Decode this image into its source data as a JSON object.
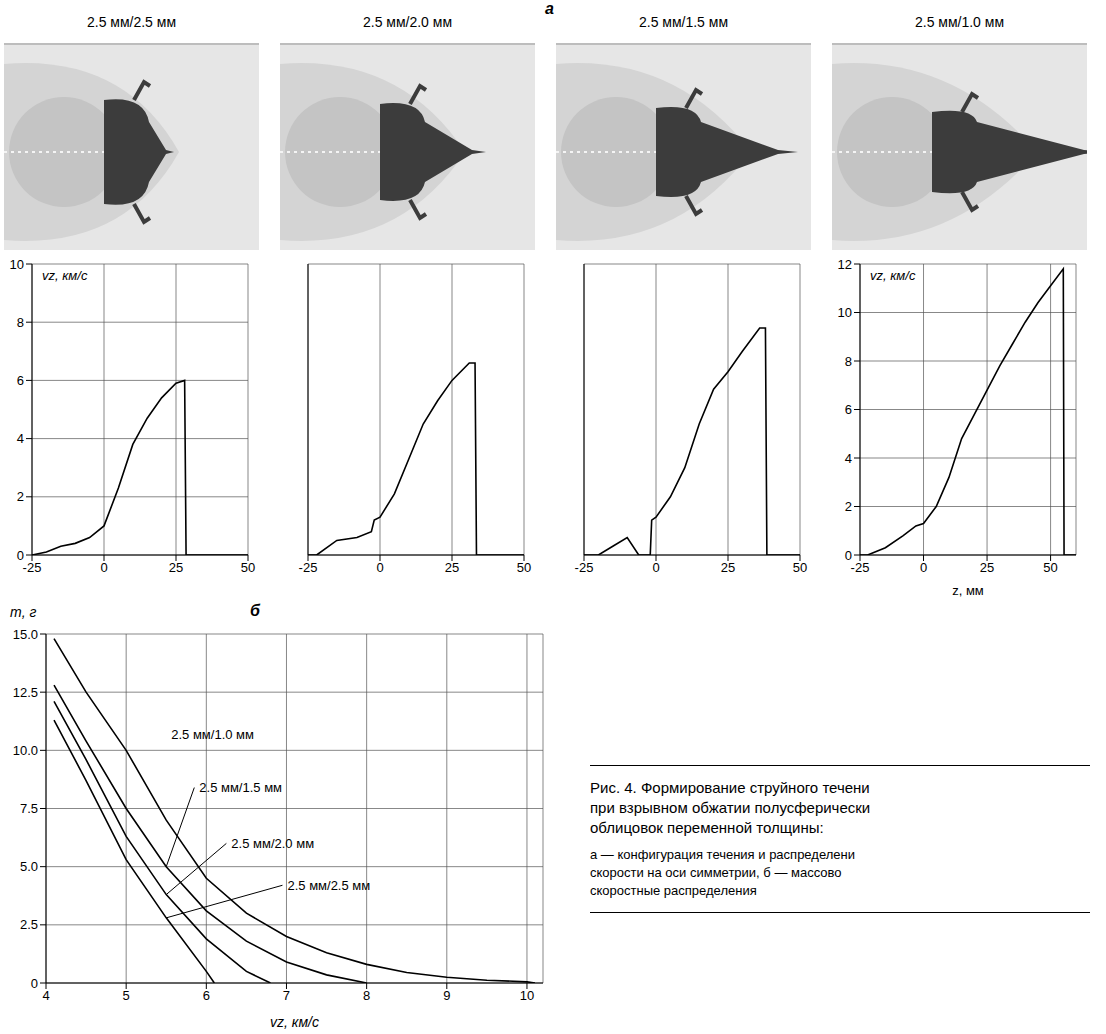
{
  "panel_labels": [
    "a",
    "б"
  ],
  "caption": {
    "title_lines": [
      "Рис. 4. Формирование струйного течени",
      "при взрывном обжатии полусферически",
      "облицовок переменной толщины:"
    ],
    "text_lines": [
      "a — конфигурация течения и распределени",
      "скорости на оси симметрии, б — массово",
      "скоростные распределения"
    ]
  },
  "chart_data": [
    {
      "type": "line",
      "title": "2.5 мм/2.5 мм",
      "y_label": "vz, км/с",
      "x": [
        -25,
        -20,
        -15,
        -10,
        -5,
        0,
        5,
        10,
        15,
        20,
        25,
        28,
        28.5,
        50
      ],
      "values": [
        0,
        0.1,
        0.3,
        0.4,
        0.6,
        1.0,
        2.3,
        3.8,
        4.7,
        5.4,
        5.9,
        6.0,
        0,
        0
      ],
      "color": "#000000",
      "xlim": [
        -25,
        50
      ],
      "xticks": [
        -25,
        0,
        25,
        50
      ],
      "ylim": [
        0,
        10
      ],
      "yticks": [
        0,
        2,
        4,
        6,
        8,
        10
      ],
      "grid": true
    },
    {
      "type": "line",
      "title": "2.5 мм/2.0 мм",
      "x": [
        -25,
        -22,
        -15,
        -8,
        -3,
        -2,
        0,
        5,
        10,
        15,
        20,
        25,
        31,
        33,
        33.5,
        50
      ],
      "values": [
        0,
        0,
        0.5,
        0.6,
        0.8,
        1.2,
        1.3,
        2.1,
        3.3,
        4.5,
        5.3,
        6.0,
        6.6,
        6.6,
        0,
        0
      ],
      "color": "#000000",
      "xlim": [
        -25,
        50
      ],
      "xticks": [
        -25,
        0,
        25,
        50
      ],
      "ylim": [
        0,
        10
      ],
      "yticks": [
        0,
        2,
        4,
        6,
        8,
        10
      ],
      "grid": true,
      "tick_labels": "x"
    },
    {
      "type": "line",
      "title": "2.5 мм/1.5 мм",
      "x": [
        -25,
        -20,
        -15,
        -10,
        -6,
        -2,
        -1.5,
        0,
        5,
        10,
        15,
        20,
        25,
        30,
        36,
        38,
        38.5,
        50
      ],
      "values": [
        0,
        0,
        0.3,
        0.6,
        0,
        0,
        1.2,
        1.3,
        2.0,
        3.0,
        4.5,
        5.7,
        6.3,
        7.0,
        7.8,
        7.8,
        0,
        0
      ],
      "color": "#000000",
      "xlim": [
        -25,
        50
      ],
      "xticks": [
        -25,
        0,
        25,
        50
      ],
      "ylim": [
        0,
        10
      ],
      "yticks": [
        0,
        2,
        4,
        6,
        8,
        10
      ],
      "grid": true,
      "tick_labels": "x"
    },
    {
      "type": "line",
      "title": "2.5 мм/1.0 мм",
      "y_label": "vz, км/с",
      "x_label": "z, мм",
      "x": [
        -25,
        -22,
        -15,
        -8,
        -3,
        0,
        5,
        10,
        15,
        20,
        25,
        30,
        35,
        40,
        45,
        50,
        55,
        55.3,
        60
      ],
      "values": [
        0,
        0,
        0.3,
        0.8,
        1.2,
        1.3,
        2.0,
        3.2,
        4.8,
        5.8,
        6.8,
        7.8,
        8.7,
        9.6,
        10.4,
        11.1,
        11.8,
        0,
        0
      ],
      "color": "#000000",
      "xlim": [
        -25,
        60
      ],
      "xticks": [
        -25,
        0,
        25,
        50
      ],
      "ylim": [
        0,
        12
      ],
      "yticks": [
        0,
        2,
        4,
        6,
        8,
        10,
        12
      ],
      "grid": true
    },
    {
      "type": "line",
      "x_label": "vz, км/с",
      "y_label": "m, г",
      "series": [
        {
          "name": "2.5 мм/2.5 мм",
          "color": "#000000",
          "x": [
            4.1,
            4.5,
            5,
            5.5,
            6,
            6.1
          ],
          "values": [
            11.3,
            8.7,
            5.3,
            2.8,
            0.5,
            0
          ]
        },
        {
          "name": "2.5 мм/2.0 мм",
          "color": "#000000",
          "x": [
            4.1,
            4.5,
            5,
            5.5,
            6,
            6.5,
            6.8
          ],
          "values": [
            12.1,
            9.6,
            6.3,
            3.8,
            1.9,
            0.5,
            0
          ]
        },
        {
          "name": "2.5 мм/1.5 мм",
          "color": "#000000",
          "x": [
            4.1,
            4.5,
            5,
            5.5,
            6,
            6.5,
            7,
            7.5,
            8
          ],
          "values": [
            12.8,
            10.4,
            7.5,
            5.0,
            3.1,
            1.8,
            0.9,
            0.35,
            0
          ]
        },
        {
          "name": "2.5 мм/1.0 мм",
          "color": "#000000",
          "x": [
            4.1,
            4.5,
            5,
            5.5,
            6,
            6.5,
            7,
            7.5,
            8,
            8.5,
            9,
            9.5,
            10,
            10.1
          ],
          "values": [
            14.8,
            12.5,
            10.0,
            7.0,
            4.5,
            3.0,
            2.0,
            1.3,
            0.8,
            0.45,
            0.25,
            0.12,
            0.05,
            0
          ]
        }
      ],
      "xlim": [
        4,
        10.2
      ],
      "xticks": [
        4,
        5,
        6,
        7,
        8,
        9,
        10
      ],
      "ylim": [
        0,
        15
      ],
      "yticks": [
        0,
        2.5,
        {
          "value": 5,
          "label": "5.0"
        },
        7.5,
        {
          "value": 10,
          "label": "10.0"
        },
        12.5,
        {
          "value": 15,
          "label": "15.0"
        }
      ],
      "grid": true
    }
  ]
}
